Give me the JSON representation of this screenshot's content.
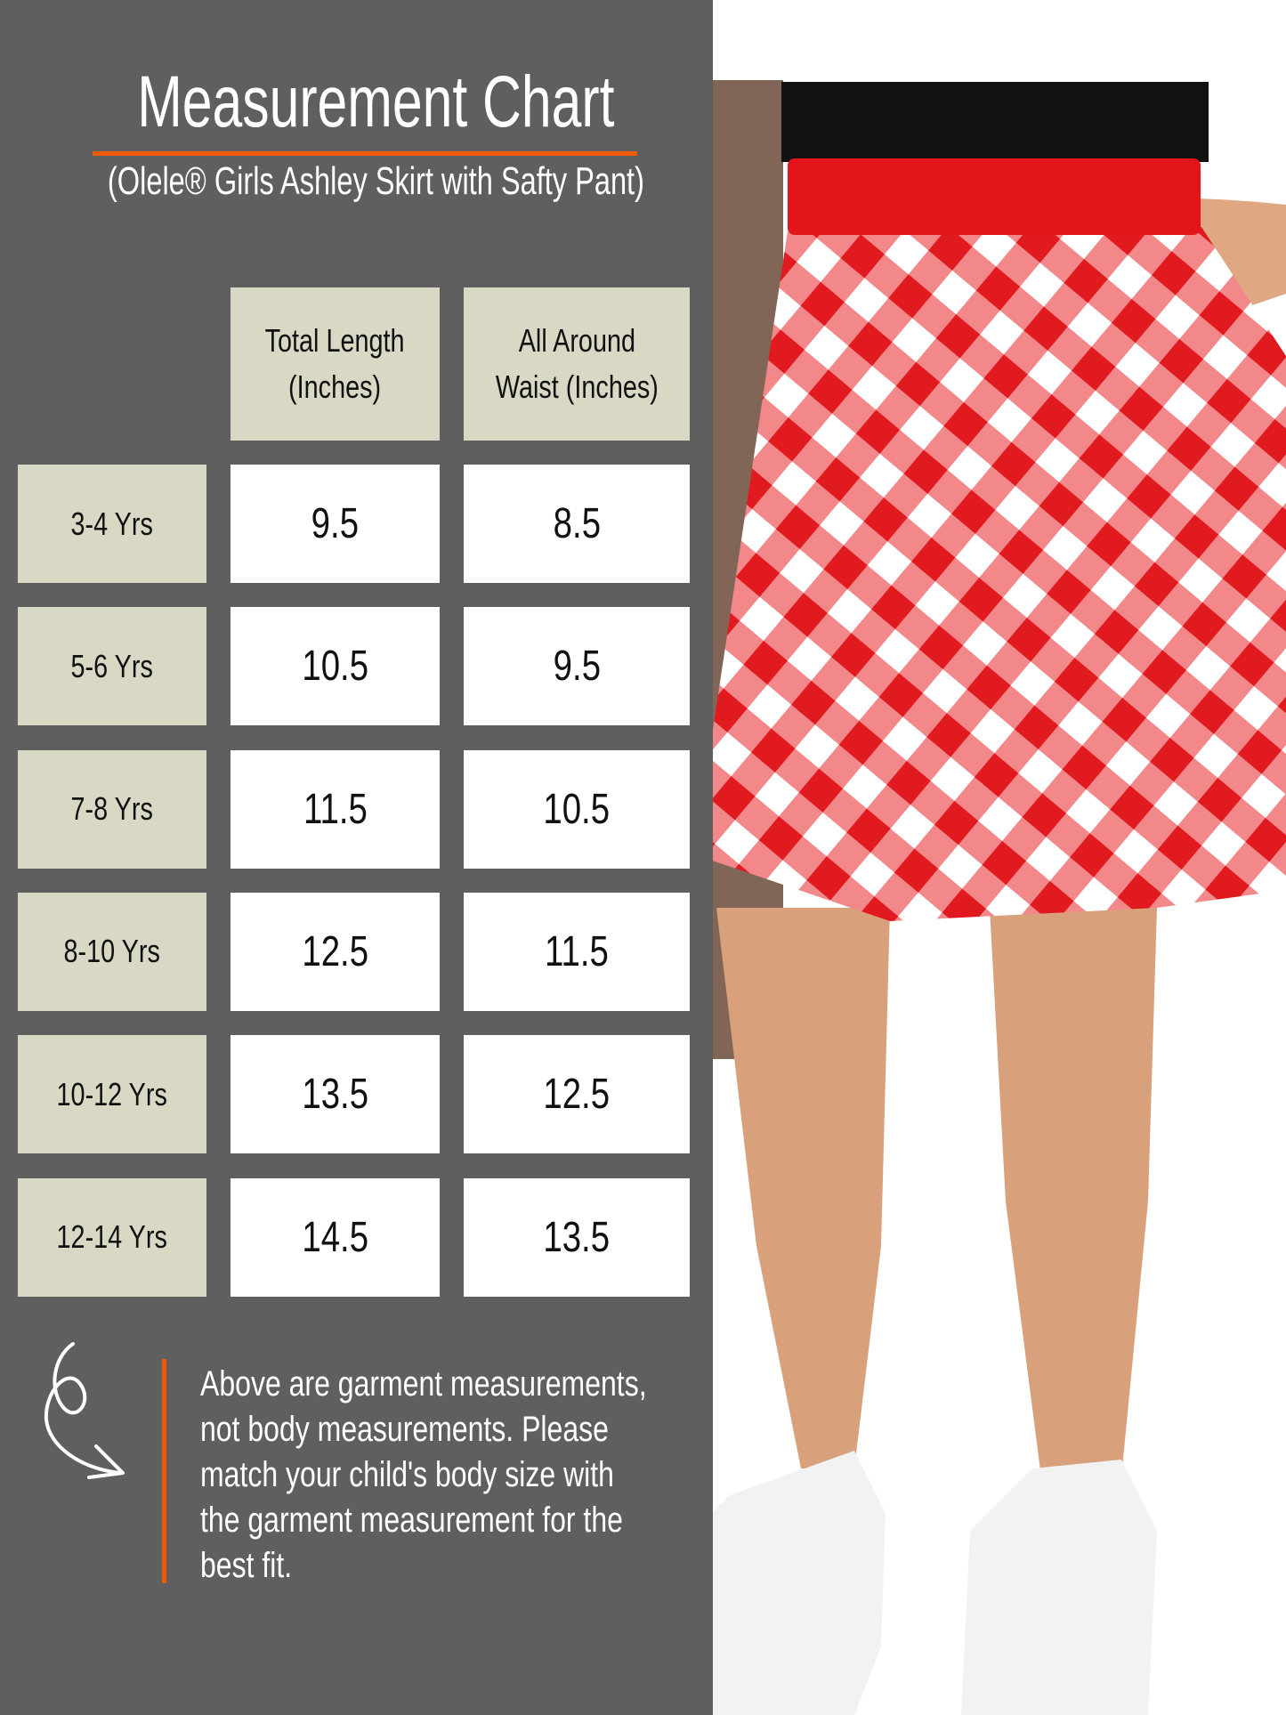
{
  "title": "Measurement Chart",
  "subtitle": "(Olele® Girls Ashley Skirt with Safty Pant)",
  "colors": {
    "panel": "#5f5f5f",
    "accent": "#f05a00",
    "header_cell": "#d9d8c5",
    "value_cell": "#ffffff"
  },
  "table": {
    "headers": [
      {
        "line1": "Total Length",
        "line2": "(Inches)"
      },
      {
        "line1": "All Around",
        "line2": "Waist (Inches)"
      }
    ],
    "rows": [
      {
        "size": "3-4 Yrs",
        "total_length": "9.5",
        "waist": "8.5"
      },
      {
        "size": "5-6 Yrs",
        "total_length": "10.5",
        "waist": "9.5"
      },
      {
        "size": "7-8 Yrs",
        "total_length": "11.5",
        "waist": "10.5"
      },
      {
        "size": "8-10 Yrs",
        "total_length": "12.5",
        "waist": "11.5"
      },
      {
        "size": "10-12 Yrs",
        "total_length": "13.5",
        "waist": "12.5"
      },
      {
        "size": "12-14 Yrs",
        "total_length": "14.5",
        "waist": "13.5"
      }
    ]
  },
  "note": {
    "icon": "curved-arrow-icon",
    "lines": [
      "Above are garment measurements,",
      "not body measurements. Please",
      "match your child's body size with",
      "the garment measurement for the",
      "best fit."
    ]
  }
}
